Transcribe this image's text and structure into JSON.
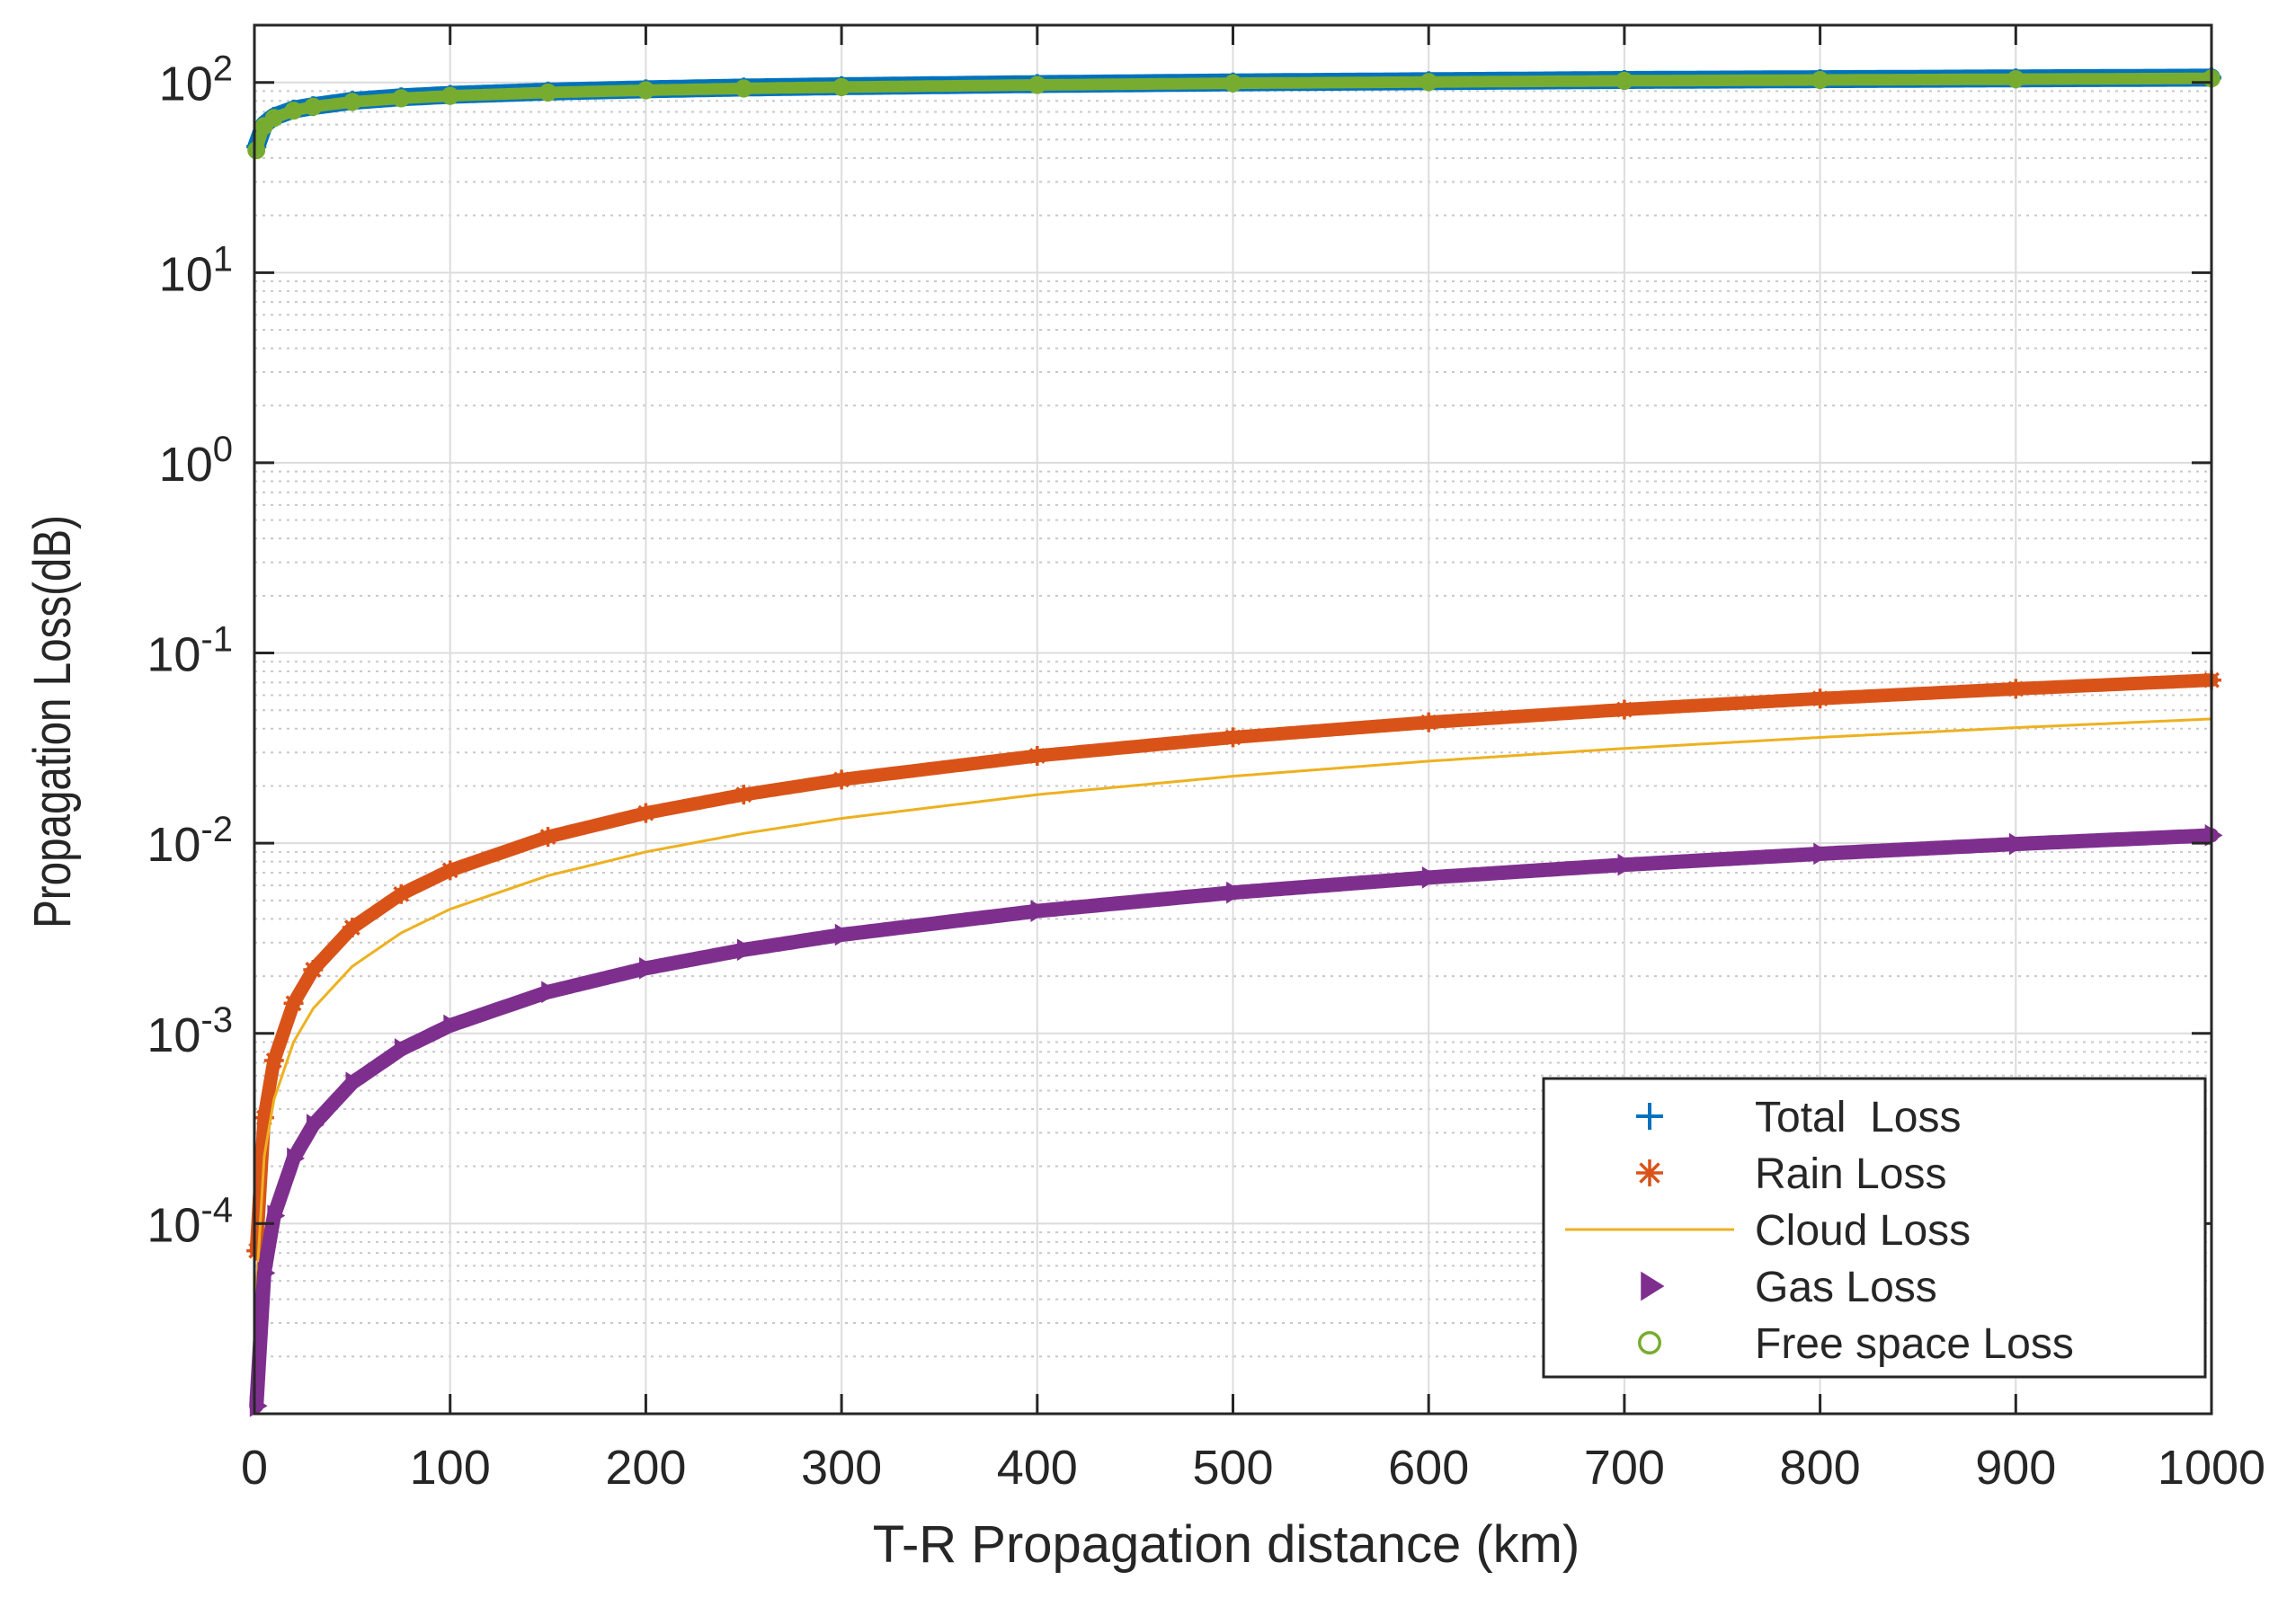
{
  "chart_data": {
    "type": "line",
    "title": "",
    "xlabel": "T-R Propagation distance (km)",
    "ylabel": "Propagation Loss(dB)",
    "xlim": [
      0,
      1000
    ],
    "ylim": [
      1e-05,
      200
    ],
    "yscale": "log",
    "grid": true,
    "minor_grid": true,
    "legend_position": "bottom-right",
    "x_ticks": [
      {
        "value": 0,
        "label": "0"
      },
      {
        "value": 100,
        "label": "100"
      },
      {
        "value": 200,
        "label": "200"
      },
      {
        "value": 300,
        "label": "300"
      },
      {
        "value": 400,
        "label": "400"
      },
      {
        "value": 500,
        "label": "500"
      },
      {
        "value": 600,
        "label": "600"
      },
      {
        "value": 700,
        "label": "700"
      },
      {
        "value": 800,
        "label": "800"
      },
      {
        "value": 900,
        "label": "900"
      },
      {
        "value": 1000,
        "label": "1000"
      }
    ],
    "y_ticks": [
      {
        "value": 0.0001,
        "base": "10",
        "exp": "-4"
      },
      {
        "value": 0.001,
        "base": "10",
        "exp": "-3"
      },
      {
        "value": 0.01,
        "base": "10",
        "exp": "-2"
      },
      {
        "value": 0.1,
        "base": "10",
        "exp": "-1"
      },
      {
        "value": 1,
        "base": "10",
        "exp": "0"
      },
      {
        "value": 10,
        "base": "10",
        "exp": "1"
      },
      {
        "value": 100,
        "base": "10",
        "exp": "2"
      }
    ],
    "x": [
      1,
      5,
      10,
      20,
      30,
      50,
      75,
      100,
      150,
      200,
      250,
      300,
      400,
      500,
      600,
      700,
      800,
      900,
      1000
    ],
    "series": [
      {
        "name": "Total  Loss",
        "color": "#0072BD",
        "marker": "plus",
        "values": [
          46,
          60,
          66,
          72,
          75,
          80,
          83.5,
          86,
          89.5,
          92,
          94,
          95.5,
          98,
          100,
          101.5,
          103,
          104,
          105,
          106
        ]
      },
      {
        "name": "Rain Loss",
        "color": "#D95319",
        "marker": "star",
        "values": [
          7.2e-05,
          0.00036,
          0.00072,
          0.00144,
          0.00216,
          0.0036,
          0.0054,
          0.0072,
          0.0108,
          0.0144,
          0.018,
          0.0216,
          0.0288,
          0.036,
          0.0432,
          0.0504,
          0.0576,
          0.0648,
          0.072
        ]
      },
      {
        "name": "Cloud Loss",
        "color": "#EDB120",
        "marker": "none",
        "values": [
          4.5e-05,
          0.000225,
          0.00045,
          0.0009,
          0.00135,
          0.00225,
          0.003375,
          0.0045,
          0.00675,
          0.009,
          0.01125,
          0.0135,
          0.018,
          0.0225,
          0.027,
          0.0315,
          0.036,
          0.0405,
          0.045
        ]
      },
      {
        "name": "Gas Loss",
        "color": "#7E2F8E",
        "marker": "triangle-right",
        "values": [
          1.1e-05,
          5.5e-05,
          0.00011,
          0.00022,
          0.00033,
          0.00055,
          0.000825,
          0.0011,
          0.00165,
          0.0022,
          0.00275,
          0.0033,
          0.0044,
          0.0055,
          0.0066,
          0.0077,
          0.0088,
          0.0099,
          0.011
        ]
      },
      {
        "name": "Free space Loss",
        "color": "#77AC30",
        "marker": "circle",
        "values": [
          44,
          59,
          65,
          71,
          74.5,
          79,
          82.5,
          85,
          88.5,
          91,
          93,
          94.5,
          97,
          99,
          100.5,
          102,
          103,
          104,
          105
        ]
      }
    ]
  }
}
